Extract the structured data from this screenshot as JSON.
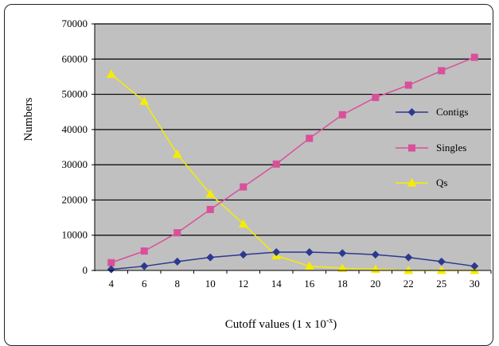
{
  "chart_data": {
    "type": "line",
    "categories": [
      "4",
      "6",
      "8",
      "10",
      "12",
      "14",
      "16",
      "18",
      "20",
      "22",
      "25",
      "30"
    ],
    "series": [
      {
        "name": "Contigs",
        "color": "#2b3990",
        "marker": "diamond",
        "values": [
          300,
          1200,
          2500,
          3700,
          4500,
          5200,
          5200,
          4900,
          4500,
          3700,
          2500,
          1200
        ]
      },
      {
        "name": "Singles",
        "color": "#d9509a",
        "marker": "square",
        "values": [
          2200,
          5500,
          10700,
          17300,
          23700,
          30200,
          37500,
          44200,
          49100,
          52600,
          56700,
          60500
        ]
      },
      {
        "name": "Qs",
        "color": "#f5ec00",
        "marker": "triangle",
        "values": [
          55700,
          48000,
          33000,
          21700,
          13200,
          4200,
          1200,
          600,
          300,
          0,
          0,
          0
        ]
      }
    ],
    "xlabel_main": "Cutoff values (1 x 10",
    "xlabel_sup": "-x",
    "xlabel_end": ")",
    "ylabel": "Numbers",
    "ylim": [
      0,
      70000
    ],
    "yticks": [
      "0",
      "10000",
      "20000",
      "30000",
      "40000",
      "50000",
      "60000",
      "70000"
    ],
    "grid": true,
    "legend_position": "right"
  }
}
